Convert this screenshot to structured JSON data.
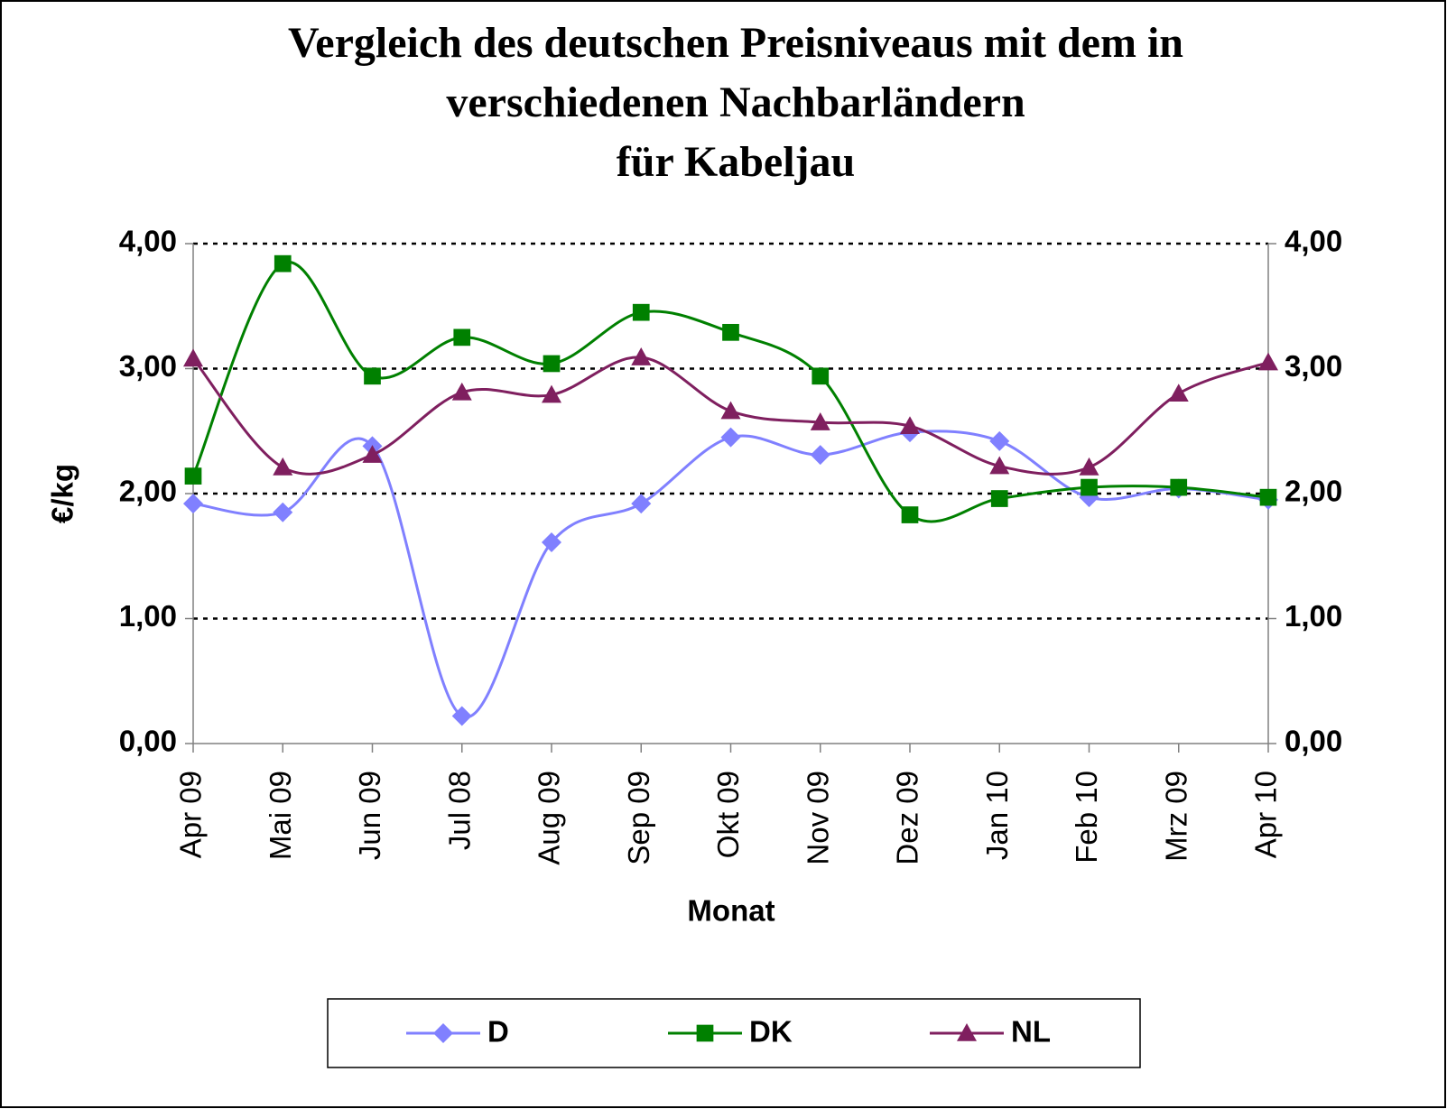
{
  "chart_data": {
    "type": "line",
    "title": [
      "Vergleich des deutschen Preisniveaus mit dem in",
      "verschiedenen Nachbarländern",
      "für Kabeljau"
    ],
    "x_label": "Monat",
    "y_label": "€/kg",
    "categories": [
      "Apr 09",
      "Mai 09",
      "Jun 09",
      "Jul 08",
      "Aug 09",
      "Sep 09",
      "Okt 09",
      "Nov 09",
      "Dez 09",
      "Jan 10",
      "Feb 10",
      "Mrz 09",
      "Apr 10"
    ],
    "series": [
      {
        "name": "D",
        "color": "#8080ff",
        "marker": "diamond",
        "values": [
          1.92,
          1.85,
          2.38,
          0.22,
          1.61,
          1.92,
          2.45,
          2.31,
          2.49,
          2.42,
          1.97,
          2.04,
          1.95
        ]
      },
      {
        "name": "DK",
        "color": "#008000",
        "marker": "square",
        "values": [
          2.14,
          3.84,
          2.94,
          3.25,
          3.04,
          3.45,
          3.29,
          2.94,
          1.83,
          1.96,
          2.05,
          2.05,
          1.97
        ]
      },
      {
        "name": "NL",
        "color": "#7f1f5f",
        "marker": "triangle",
        "values": [
          3.08,
          2.21,
          2.31,
          2.81,
          2.79,
          3.09,
          2.66,
          2.57,
          2.54,
          2.22,
          2.21,
          2.8,
          3.05
        ]
      }
    ],
    "ylim": [
      0,
      4
    ],
    "yticks": [
      {
        "value": 0,
        "label": "0,00"
      },
      {
        "value": 1,
        "label": "1,00"
      },
      {
        "value": 2,
        "label": "2,00"
      },
      {
        "value": 3,
        "label": "3,00"
      },
      {
        "value": 4,
        "label": "4,00"
      }
    ],
    "y2lim": [
      0,
      4
    ],
    "y2ticks": [
      {
        "value": 0,
        "label": "0,00"
      },
      {
        "value": 1,
        "label": "1,00"
      },
      {
        "value": 2,
        "label": "2,00"
      },
      {
        "value": 3,
        "label": "3,00"
      },
      {
        "value": 4,
        "label": "4,00"
      }
    ],
    "grid": true,
    "smooth": true,
    "legend": "bottom"
  }
}
